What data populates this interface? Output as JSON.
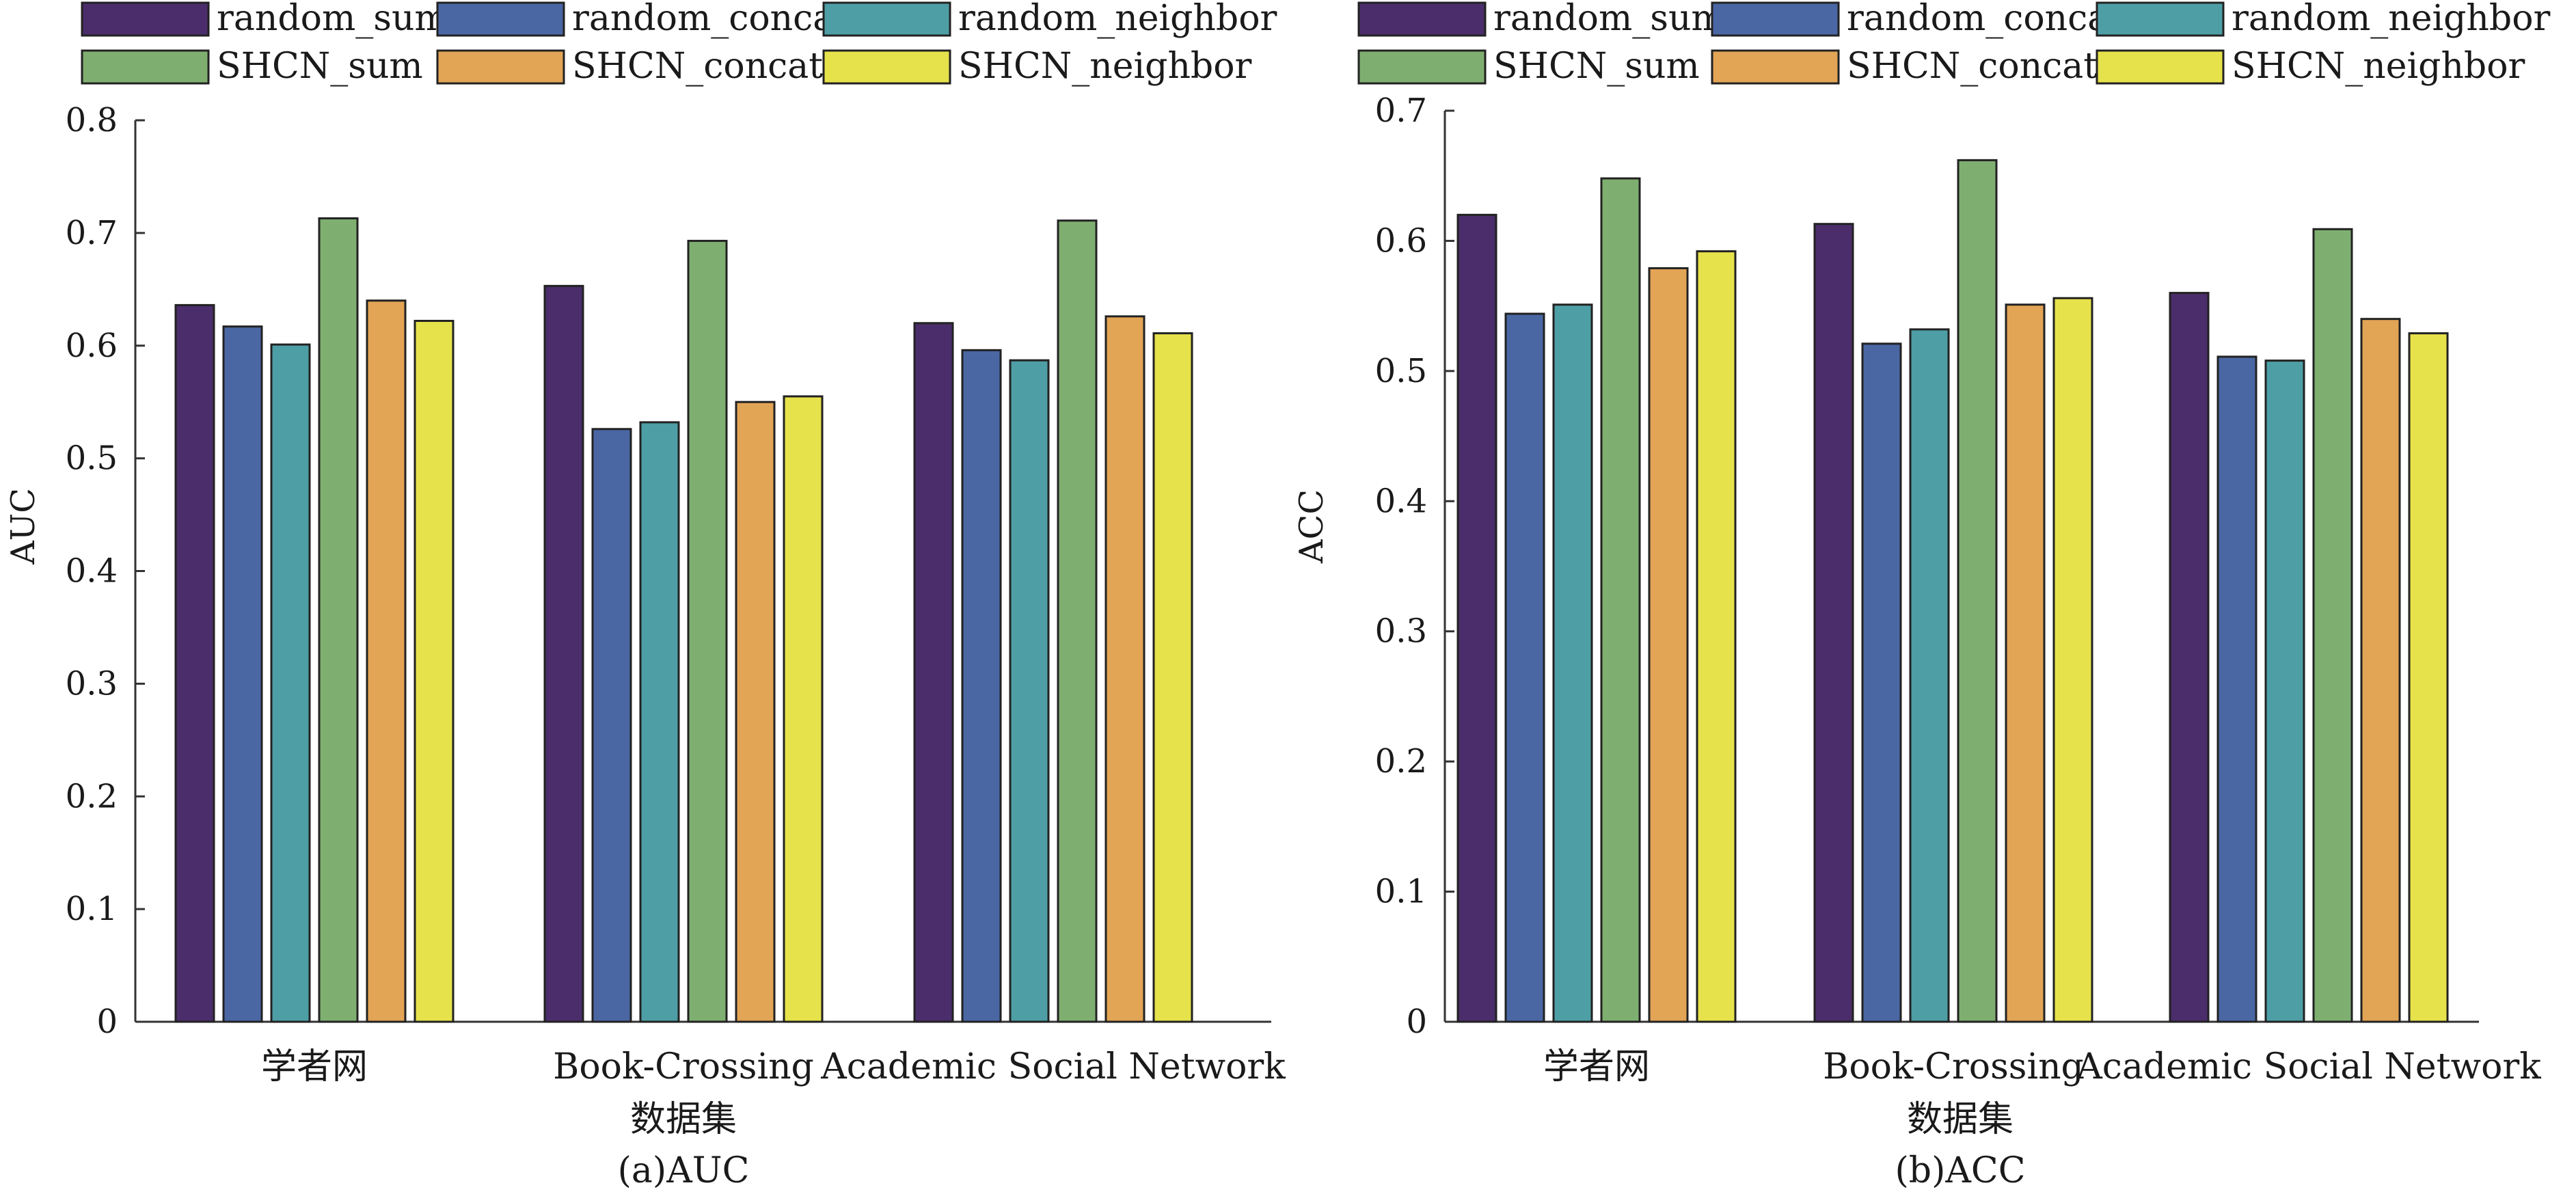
{
  "colors": {
    "random_sum": "#4b2d6b",
    "random_concat": "#4a67a4",
    "random_neighbor": "#4e9ea5",
    "SHCN_sum": "#7faf70",
    "SHCN_concat": "#e2a455",
    "SHCN_neighbor": "#e6e24b"
  },
  "chart_data": [
    {
      "type": "bar",
      "categories": [
        "学者网",
        "Book-Crossing",
        "Academic Social Network"
      ],
      "series": [
        {
          "name": "random_sum",
          "values": [
            0.636,
            0.653,
            0.62
          ]
        },
        {
          "name": "random_concat",
          "values": [
            0.617,
            0.526,
            0.596
          ]
        },
        {
          "name": "random_neighbor",
          "values": [
            0.601,
            0.532,
            0.587
          ]
        },
        {
          "name": "SHCN_sum",
          "values": [
            0.713,
            0.693,
            0.711
          ]
        },
        {
          "name": "SHCN_concat",
          "values": [
            0.64,
            0.55,
            0.626
          ]
        },
        {
          "name": "SHCN_neighbor",
          "values": [
            0.622,
            0.555,
            0.611
          ]
        }
      ],
      "xlabel": "数据集",
      "ylabel": "AUC",
      "caption": "(a)AUC",
      "ylim": [
        0,
        0.8
      ],
      "yticks": [
        "0",
        "0.1",
        "0.2",
        "0.3",
        "0.4",
        "0.5",
        "0.6",
        "0.7",
        "0.8"
      ],
      "grid": false,
      "legend_position": "top"
    },
    {
      "type": "bar",
      "categories": [
        "学者网",
        "Book-Crossing",
        "Academic Social Network"
      ],
      "series": [
        {
          "name": "random_sum",
          "values": [
            0.62,
            0.613,
            0.56
          ]
        },
        {
          "name": "random_concat",
          "values": [
            0.544,
            0.521,
            0.511
          ]
        },
        {
          "name": "random_neighbor",
          "values": [
            0.551,
            0.532,
            0.508
          ]
        },
        {
          "name": "SHCN_sum",
          "values": [
            0.648,
            0.662,
            0.609
          ]
        },
        {
          "name": "SHCN_concat",
          "values": [
            0.579,
            0.551,
            0.54
          ]
        },
        {
          "name": "SHCN_neighbor",
          "values": [
            0.592,
            0.556,
            0.529
          ]
        }
      ],
      "xlabel": "数据集",
      "ylabel": "ACC",
      "caption": "(b)ACC",
      "ylim": [
        0,
        0.7
      ],
      "yticks": [
        "0",
        "0.1",
        "0.2",
        "0.3",
        "0.4",
        "0.5",
        "0.6",
        "0.7"
      ],
      "grid": false,
      "legend_position": "top"
    }
  ]
}
